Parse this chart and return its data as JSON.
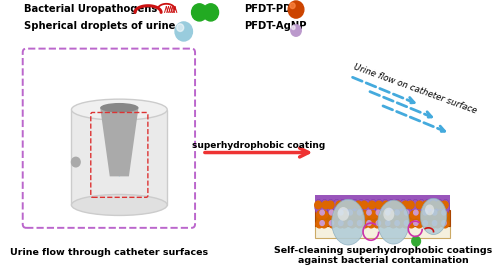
{
  "bg_color": "#ffffff",
  "text_color": "#000000",
  "legend_font_size": 7.2,
  "caption_font_size": 6.8,
  "arrow_label": "superhydrophobic coating",
  "left_caption": "Urine flow through catheter surfaces",
  "right_caption": "Self-cleaning superhydrophobic coatings\nagainst bacterial contamination",
  "urine_flow_label": "Urine flow on catheter surface",
  "red_arrow_color": "#ee3333",
  "blue_arrow_color": "#44aadd",
  "purple_box_color": "#bb66cc",
  "red_box_color": "#dd3333",
  "cyl_body_color": "#e8e8e8",
  "cyl_edge_color": "#cccccc",
  "cyl_top_color": "#f0f0f0",
  "surface_purple": "#9955bb",
  "surface_orange": "#dd6600",
  "surface_base_orange": "#cc6600",
  "surface_base_cream": "#f5f0e0",
  "droplet_color": "#b0ccd8",
  "droplet_edge": "#88aabc",
  "green_dot_color": "#33aa33",
  "magenta_arc_color": "#cc33aa",
  "pda_color": "#cc4400",
  "agnp_color": "#bb99cc"
}
